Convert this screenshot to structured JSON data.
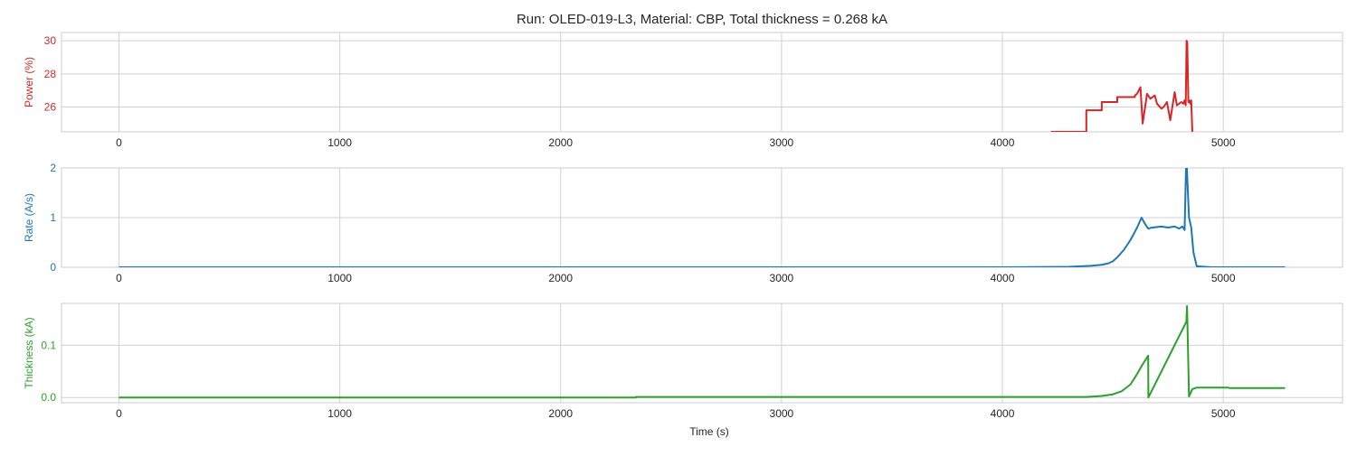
{
  "title": "Run: OLED-019-L3, Material: CBP, Total thickness = 0.268 kA",
  "chart_data": [
    {
      "type": "line",
      "name": "power-panel",
      "ylabel": "Power (%)",
      "color": "#d62728",
      "xlim": [
        -260,
        5540
      ],
      "ylim": [
        24.5,
        30.5
      ],
      "xticks": [
        0,
        1000,
        2000,
        3000,
        4000,
        5000
      ],
      "yticks": [
        26,
        28,
        30
      ],
      "grid": true,
      "series": [
        {
          "x": [
            4220,
            4380,
            4380,
            4450,
            4450,
            4520,
            4520,
            4600,
            4600,
            4610,
            4625,
            4635,
            4655,
            4670,
            4690,
            4700,
            4720,
            4730,
            4745,
            4760,
            4780,
            4790,
            4810,
            4820,
            4825,
            4830,
            4834,
            4837,
            4842,
            4846,
            4850,
            4855,
            4860
          ],
          "y": [
            24.5,
            24.5,
            25.8,
            25.8,
            26.3,
            26.3,
            26.6,
            26.6,
            26.7,
            26.8,
            27.2,
            25.0,
            26.8,
            26.5,
            26.7,
            26.2,
            25.9,
            26.0,
            26.3,
            25.2,
            26.9,
            26.1,
            26.3,
            26.2,
            26.4,
            26.1,
            30.0,
            29.9,
            26.3,
            26.4,
            26.2,
            26.4,
            24.5
          ]
        }
      ]
    },
    {
      "type": "line",
      "name": "rate-panel",
      "ylabel": "Rate (A/s)",
      "color": "#1f77b4",
      "xlim": [
        -260,
        5540
      ],
      "ylim": [
        0,
        2
      ],
      "xticks": [
        0,
        1000,
        2000,
        3000,
        4000,
        5000
      ],
      "yticks": [
        0,
        1,
        2
      ],
      "grid": true,
      "series": [
        {
          "x": [
            0,
            1000,
            2000,
            3000,
            4000,
            4300,
            4400,
            4450,
            4480,
            4500,
            4520,
            4550,
            4580,
            4610,
            4630,
            4645,
            4660,
            4680,
            4720,
            4750,
            4780,
            4800,
            4815,
            4825,
            4833,
            4838,
            4845,
            4855,
            4865,
            4880,
            4950,
            5100,
            5200,
            5280
          ],
          "y": [
            0,
            0,
            0,
            0,
            0,
            0.01,
            0.03,
            0.05,
            0.08,
            0.12,
            0.2,
            0.35,
            0.55,
            0.8,
            1.0,
            0.88,
            0.78,
            0.8,
            0.82,
            0.8,
            0.82,
            0.78,
            0.82,
            0.75,
            2.3,
            1.7,
            1.0,
            0.8,
            0.3,
            0.02,
            0,
            0,
            0,
            0
          ]
        }
      ]
    },
    {
      "type": "line",
      "name": "thickness-panel",
      "ylabel": "Thickness (kA)",
      "xlabel": "Time (s)",
      "color": "#2ca02c",
      "xlim": [
        -260,
        5540
      ],
      "ylim": [
        -0.01,
        0.18
      ],
      "xticks": [
        0,
        1000,
        2000,
        3000,
        4000,
        5000
      ],
      "yticks": [
        0.0,
        0.1
      ],
      "ytick_labels": [
        "0.0",
        "0.1"
      ],
      "grid": true,
      "series": [
        {
          "x": [
            0,
            2340,
            2340,
            4380,
            4450,
            4500,
            4540,
            4580,
            4610,
            4630,
            4660,
            4661,
            4833,
            4836,
            4845,
            4860,
            4880,
            4950,
            5020,
            5030,
            5280
          ],
          "y": [
            0,
            0,
            0.001,
            0.001,
            0.003,
            0.006,
            0.012,
            0.025,
            0.045,
            0.06,
            0.08,
            0.0,
            0.145,
            0.175,
            0.002,
            0.016,
            0.019,
            0.019,
            0.019,
            0.018,
            0.018
          ]
        }
      ]
    }
  ]
}
